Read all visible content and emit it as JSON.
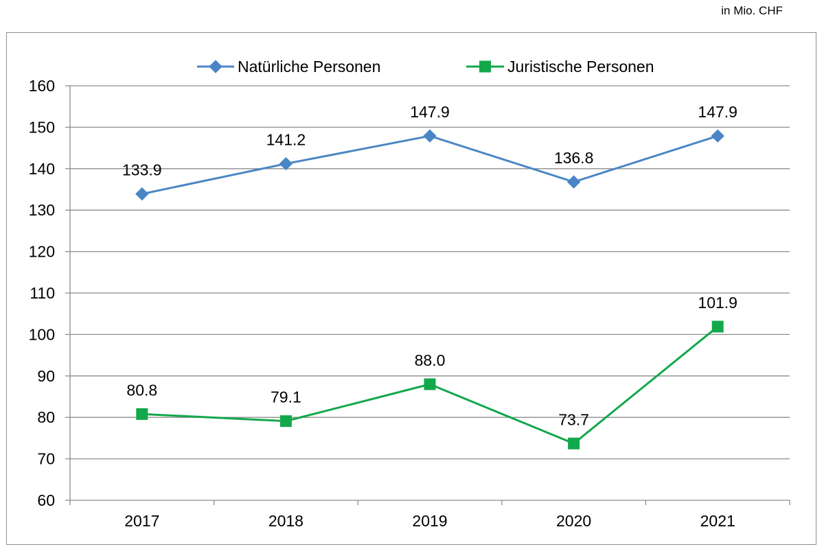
{
  "chart_data": {
    "type": "line",
    "unit_note": "in Mio. CHF",
    "title": "",
    "xlabel": "",
    "ylabel": "",
    "categories": [
      "2017",
      "2018",
      "2019",
      "2020",
      "2021"
    ],
    "ylim": [
      60,
      160
    ],
    "yticks": [
      60,
      70,
      80,
      90,
      100,
      110,
      120,
      130,
      140,
      150,
      160
    ],
    "grid": true,
    "legend_position": "top-center",
    "series": [
      {
        "name": "Natürliche Personen",
        "values": [
          133.9,
          141.2,
          147.9,
          136.8,
          147.9
        ],
        "labels": [
          "133.9",
          "141.2",
          "147.9",
          "136.8",
          "147.9"
        ],
        "color": "#4a86c5",
        "marker": "diamond"
      },
      {
        "name": "Juristische Personen",
        "values": [
          80.8,
          79.1,
          88.0,
          73.7,
          101.9
        ],
        "labels": [
          "80.8",
          "79.1",
          "88.0",
          "73.7",
          "101.9"
        ],
        "color": "#12a84b",
        "marker": "square"
      }
    ]
  }
}
